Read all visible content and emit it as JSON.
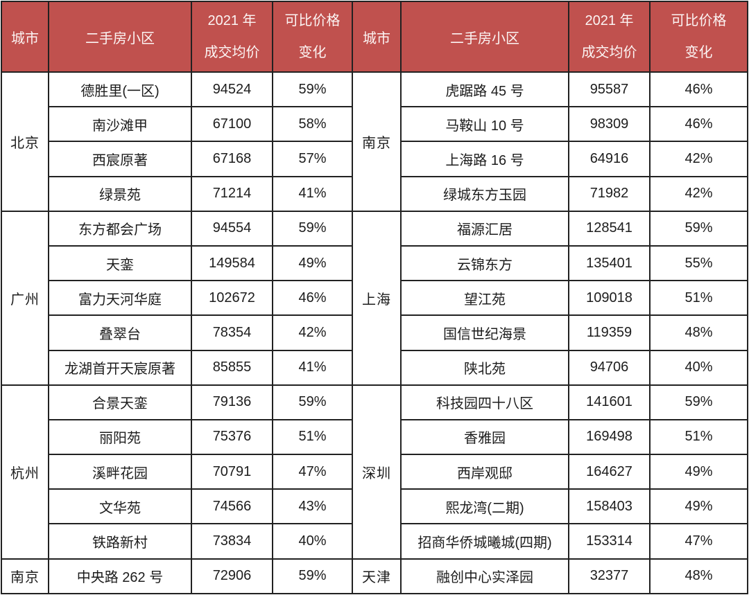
{
  "table": {
    "header": {
      "city": "城市",
      "community": "二手房小区",
      "price_line1": "2021 年",
      "price_line2": "成交均价",
      "change_line1": "可比价格",
      "change_line2": "变化"
    },
    "left_groups": [
      {
        "city": "北京",
        "rows": [
          {
            "community": "德胜里(一区)",
            "price": "94524",
            "change": "59%"
          },
          {
            "community": "南沙滩甲",
            "price": "67100",
            "change": "58%"
          },
          {
            "community": "西宸原著",
            "price": "67168",
            "change": "57%"
          },
          {
            "community": "绿景苑",
            "price": "71214",
            "change": "41%"
          }
        ]
      },
      {
        "city": "广州",
        "rows": [
          {
            "community": "东方都会广场",
            "price": "94554",
            "change": "59%"
          },
          {
            "community": "天銮",
            "price": "149584",
            "change": "49%"
          },
          {
            "community": "富力天河华庭",
            "price": "102672",
            "change": "46%"
          },
          {
            "community": "叠翠台",
            "price": "78354",
            "change": "42%"
          },
          {
            "community": "龙湖首开天宸原著",
            "price": "85855",
            "change": "41%"
          }
        ]
      },
      {
        "city": "杭州",
        "rows": [
          {
            "community": "合景天銮",
            "price": "79136",
            "change": "59%"
          },
          {
            "community": "丽阳苑",
            "price": "75376",
            "change": "51%"
          },
          {
            "community": "溪畔花园",
            "price": "70791",
            "change": "47%"
          },
          {
            "community": "文华苑",
            "price": "74566",
            "change": "43%"
          },
          {
            "community": "铁路新村",
            "price": "73834",
            "change": "40%"
          }
        ]
      },
      {
        "city": "南京",
        "rows": [
          {
            "community": "中央路 262 号",
            "price": "72906",
            "change": "59%"
          }
        ]
      }
    ],
    "right_groups": [
      {
        "city": "南京",
        "rows": [
          {
            "community": "虎踞路 45 号",
            "price": "95587",
            "change": "46%"
          },
          {
            "community": "马鞍山 10 号",
            "price": "98309",
            "change": "46%"
          },
          {
            "community": "上海路 16 号",
            "price": "64916",
            "change": "42%"
          },
          {
            "community": "绿城东方玉园",
            "price": "71982",
            "change": "42%"
          }
        ]
      },
      {
        "city": "上海",
        "rows": [
          {
            "community": "福源汇居",
            "price": "128541",
            "change": "59%"
          },
          {
            "community": "云锦东方",
            "price": "135401",
            "change": "55%"
          },
          {
            "community": "望江苑",
            "price": "109018",
            "change": "51%"
          },
          {
            "community": "国信世纪海景",
            "price": "119359",
            "change": "48%"
          },
          {
            "community": "陕北苑",
            "price": "94706",
            "change": "40%"
          }
        ]
      },
      {
        "city": "深圳",
        "rows": [
          {
            "community": "科技园四十八区",
            "price": "141601",
            "change": "59%"
          },
          {
            "community": "香雅园",
            "price": "169498",
            "change": "51%"
          },
          {
            "community": "西岸观邸",
            "price": "164627",
            "change": "49%"
          },
          {
            "community": "熙龙湾(二期)",
            "price": "158403",
            "change": "49%"
          },
          {
            "community": "招商华侨城曦城(四期)",
            "price": "153314",
            "change": "47%"
          }
        ]
      },
      {
        "city": "天津",
        "rows": [
          {
            "community": "融创中心实泽园",
            "price": "32377",
            "change": "48%"
          }
        ]
      }
    ]
  },
  "colors": {
    "header_bg": "#C0514E",
    "header_text": "#FCF5F4",
    "border": "#212121",
    "body_text": "#1C1C1C"
  }
}
